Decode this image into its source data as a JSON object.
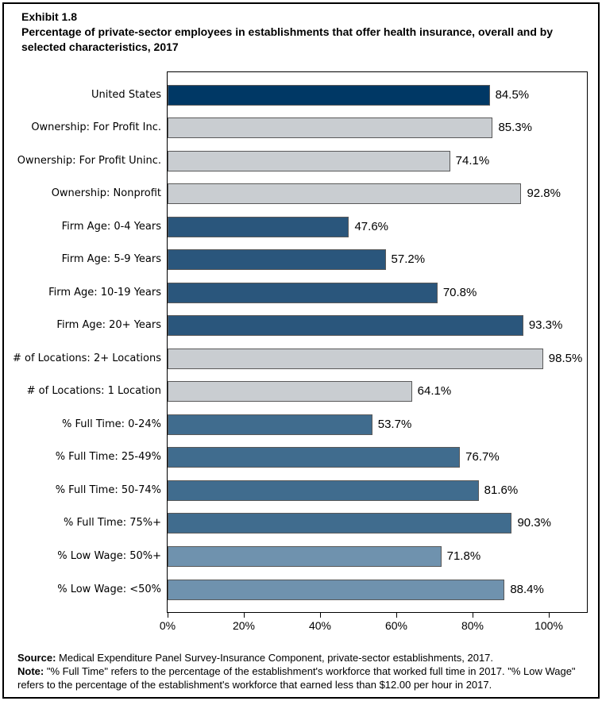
{
  "title": {
    "exhibit": "Exhibit 1.8",
    "text": "Percentage of private-sector employees in establishments that offer health insurance, overall and by selected characteristics, 2017"
  },
  "chart_data": {
    "type": "bar",
    "orientation": "horizontal",
    "title": "Percentage of private-sector employees in establishments that offer health insurance, overall and by selected characteristics, 2017",
    "xlabel": "",
    "ylabel": "",
    "xlim": [
      0,
      110
    ],
    "x_ticks": [
      {
        "label": "0%",
        "value": 0
      },
      {
        "label": "20%",
        "value": 20
      },
      {
        "label": "40%",
        "value": 40
      },
      {
        "label": "60%",
        "value": 60
      },
      {
        "label": "80%",
        "value": 80
      },
      {
        "label": "100%",
        "value": 100
      }
    ],
    "colors": {
      "united_states": "#003865",
      "ownership_locations": "#C9CDD1",
      "firm_age": "#2A567C",
      "full_time": "#406C8E",
      "low_wage": "#6F92AE"
    },
    "bars": [
      {
        "label": "United States",
        "value": 84.5,
        "display": "84.5%",
        "color": "#003865"
      },
      {
        "label": "Ownership: For Profit Inc.",
        "value": 85.3,
        "display": "85.3%",
        "color": "#C9CDD1"
      },
      {
        "label": "Ownership: For Profit Uninc.",
        "value": 74.1,
        "display": "74.1%",
        "color": "#C9CDD1"
      },
      {
        "label": "Ownership: Nonprofit",
        "value": 92.8,
        "display": "92.8%",
        "color": "#C9CDD1"
      },
      {
        "label": "Firm Age: 0-4 Years",
        "value": 47.6,
        "display": "47.6%",
        "color": "#2A567C"
      },
      {
        "label": "Firm Age: 5-9 Years",
        "value": 57.2,
        "display": "57.2%",
        "color": "#2A567C"
      },
      {
        "label": "Firm Age: 10-19 Years",
        "value": 70.8,
        "display": "70.8%",
        "color": "#2A567C"
      },
      {
        "label": "Firm Age: 20+ Years",
        "value": 93.3,
        "display": "93.3%",
        "color": "#2A567C"
      },
      {
        "label": "# of Locations: 2+ Locations",
        "value": 98.5,
        "display": "98.5%",
        "color": "#C9CDD1"
      },
      {
        "label": "# of Locations: 1 Location",
        "value": 64.1,
        "display": "64.1%",
        "color": "#C9CDD1"
      },
      {
        "label": "% Full Time: 0-24%",
        "value": 53.7,
        "display": "53.7%",
        "color": "#406C8E"
      },
      {
        "label": "% Full Time: 25-49%",
        "value": 76.7,
        "display": "76.7%",
        "color": "#406C8E"
      },
      {
        "label": "% Full Time: 50-74%",
        "value": 81.6,
        "display": "81.6%",
        "color": "#406C8E"
      },
      {
        "label": "% Full Time: 75%+",
        "value": 90.3,
        "display": "90.3%",
        "color": "#406C8E"
      },
      {
        "label": "% Low Wage: 50%+",
        "value": 71.8,
        "display": "71.8%",
        "color": "#6F92AE"
      },
      {
        "label": "% Low Wage: <50%",
        "value": 88.4,
        "display": "88.4%",
        "color": "#6F92AE"
      }
    ]
  },
  "footer": {
    "source_label": "Source:",
    "source_text": " Medical Expenditure Panel Survey-Insurance Component, private-sector establishments, 2017.",
    "note_label": "Note:",
    "note_text": " \"% Full Time\" refers to the percentage of the establishment's workforce that worked full time in 2017. \"% Low Wage\" refers to the percentage of the establishment's workforce that earned less than $12.00 per hour in 2017."
  }
}
